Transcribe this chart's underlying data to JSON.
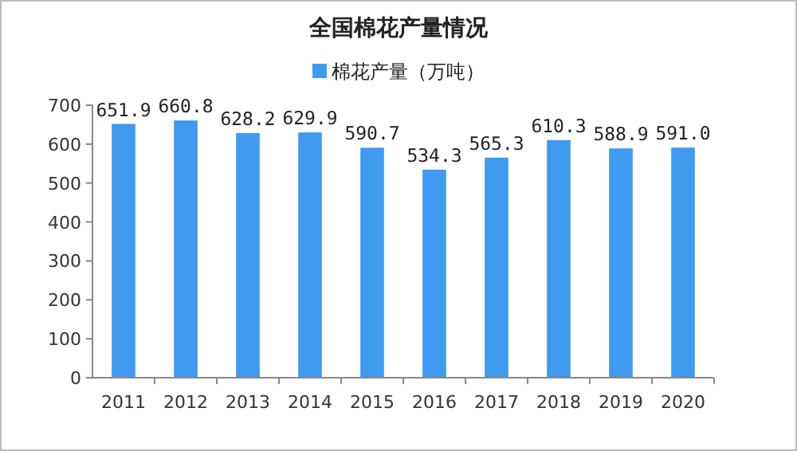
{
  "chart_data": {
    "type": "bar",
    "title": "全国棉花产量情况",
    "categories": [
      "2011",
      "2012",
      "2013",
      "2014",
      "2015",
      "2016",
      "2017",
      "2018",
      "2019",
      "2020"
    ],
    "series": [
      {
        "name": "棉花产量（万吨）",
        "color": "#3f9af0",
        "values": [
          651.9,
          660.8,
          628.2,
          629.9,
          590.7,
          534.3,
          565.3,
          610.3,
          588.9,
          591.0
        ],
        "value_labels": [
          "651.9",
          "660.8",
          "628.2",
          "629.9",
          "590.7",
          "534.3",
          "565.3",
          "610.3",
          "588.9",
          "591.0"
        ]
      }
    ],
    "ylim": [
      0,
      700
    ],
    "yticks": [
      0,
      100,
      200,
      300,
      400,
      500,
      600,
      700
    ],
    "legend": "top"
  }
}
